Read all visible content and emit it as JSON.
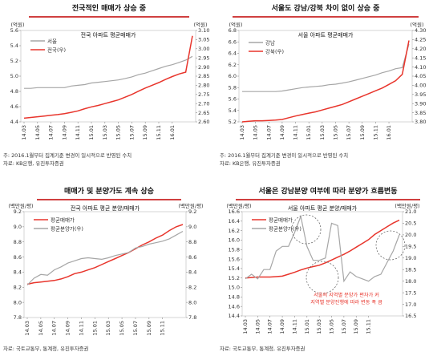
{
  "colors": {
    "red": "#e8352c",
    "gray": "#a6a6a6",
    "title_bar": "#c00000",
    "axis": "#888888",
    "text": "#333333"
  },
  "notes": {
    "top_left_1": "주: 2016.1월부터 집계기준 변경이 일시적으로 반영된 수치",
    "top_left_2": "자료: KB은행, 유진투자증권",
    "top_right_1": "주: 2016.1월부터 집계기준 변경이 일시적으로 반영된 수치",
    "top_right_2": "자료: KB은행, 유진투자증권",
    "bottom_left": "자료: 국토교통부, 통계청, 유진투자증권",
    "bottom_right": "자료: 국토교통부, 통계청, 유진투자증권"
  },
  "chart_data": [
    {
      "type": "line",
      "panel_title": "전국적인 매매가 상승 중",
      "title": "전국 아파트 평균매매가",
      "ylabel_left": "(억원)",
      "ylabel_right": "(억원)",
      "x_ticks": [
        "14.03",
        "14.05",
        "14.07",
        "14.09",
        "14.11",
        "15.01",
        "15.03",
        "15.05",
        "15.07",
        "15.09",
        "15.11",
        "16.01"
      ],
      "ylim_left": [
        4.4,
        5.6
      ],
      "ylim_right": [
        2.6,
        3.1
      ],
      "yticks_left": [
        4.4,
        4.6,
        4.8,
        5.0,
        5.2,
        5.4,
        5.6
      ],
      "yticks_right": [
        2.6,
        2.65,
        2.7,
        2.75,
        2.8,
        2.85,
        2.9,
        2.95,
        3.0,
        3.05,
        3.1
      ],
      "ytick_labels_left": [
        "4.4",
        "4.6",
        "4.8",
        "5.0",
        "5.2",
        "5.4",
        "5.6"
      ],
      "ytick_labels_right": [
        "2.60",
        "2.65",
        "2.70",
        "2.75",
        "2.80",
        "2.85",
        "2.90",
        "2.95",
        "3.00",
        "3.05",
        "3.10"
      ],
      "legend": "top-left",
      "series": [
        {
          "name": "서울",
          "axis": "left",
          "color": "gray",
          "values": [
            4.84,
            4.84,
            4.85,
            4.85,
            4.85,
            4.85,
            4.85,
            4.87,
            4.88,
            4.89,
            4.91,
            4.92,
            4.93,
            4.94,
            4.95,
            4.97,
            4.99,
            5.02,
            5.04,
            5.07,
            5.1,
            5.13,
            5.15,
            5.18,
            5.21,
            5.26
          ]
        },
        {
          "name": "전국(우)",
          "axis": "right",
          "color": "red",
          "values": [
            2.62,
            2.624,
            2.628,
            2.632,
            2.636,
            2.64,
            2.645,
            2.652,
            2.66,
            2.672,
            2.682,
            2.69,
            2.7,
            2.71,
            2.72,
            2.735,
            2.75,
            2.768,
            2.785,
            2.8,
            2.815,
            2.832,
            2.848,
            2.862,
            2.872,
            3.07
          ]
        }
      ]
    },
    {
      "type": "line",
      "panel_title": "서울도 강남/강북 차이 없이 상승 중",
      "title": "서울 아파트 평균매매가",
      "ylabel_left": "(억원)",
      "ylabel_right": "(억원)",
      "x_ticks": [
        "14.03",
        "14.05",
        "14.07",
        "14.09",
        "14.11",
        "15.01",
        "15.03",
        "15.05",
        "15.07",
        "15.09",
        "15.11",
        "16.01"
      ],
      "ylim_left": [
        5.2,
        6.8
      ],
      "ylim_right": [
        3.8,
        4.3
      ],
      "yticks_left": [
        5.2,
        5.4,
        5.6,
        5.8,
        6.0,
        6.2,
        6.4,
        6.6,
        6.8
      ],
      "yticks_right": [
        3.8,
        3.85,
        3.9,
        3.95,
        4.0,
        4.05,
        4.1,
        4.15,
        4.2,
        4.25,
        4.3
      ],
      "ytick_labels_left": [
        "5.2",
        "5.4",
        "5.6",
        "5.8",
        "6.0",
        "6.2",
        "6.4",
        "6.6",
        "6.8"
      ],
      "ytick_labels_right": [
        "3.80",
        "3.85",
        "3.90",
        "3.95",
        "4.00",
        "4.05",
        "4.10",
        "4.15",
        "4.20",
        "4.25",
        "4.30"
      ],
      "legend": "top-left",
      "series": [
        {
          "name": "강남",
          "axis": "left",
          "color": "gray",
          "values": [
            5.73,
            5.73,
            5.73,
            5.73,
            5.73,
            5.73,
            5.74,
            5.76,
            5.78,
            5.8,
            5.81,
            5.82,
            5.83,
            5.85,
            5.86,
            5.88,
            5.9,
            5.93,
            5.96,
            5.99,
            6.02,
            6.06,
            6.09,
            6.13,
            6.15,
            6.56
          ]
        },
        {
          "name": "강북(우)",
          "axis": "right",
          "color": "red",
          "values": [
            3.8,
            3.803,
            3.806,
            3.806,
            3.808,
            3.81,
            3.813,
            3.823,
            3.832,
            3.84,
            3.848,
            3.855,
            3.865,
            3.875,
            3.885,
            3.895,
            3.91,
            3.925,
            3.94,
            3.955,
            3.97,
            3.985,
            4.005,
            4.025,
            4.06,
            4.245
          ]
        }
      ]
    },
    {
      "type": "line",
      "panel_title": "매매가 및 분양가도 계속 상승",
      "title": "전국 아파트 평균 분양/매매가",
      "ylabel_left": "(백만원/평)",
      "ylabel_right": "(백만원/평)",
      "x_ticks": [
        "14.03",
        "14.05",
        "14.07",
        "14.09",
        "14.11",
        "15.01",
        "15.03",
        "15.05",
        "15.07",
        "15.09",
        "15.11"
      ],
      "ylim_left": [
        7.8,
        9.2
      ],
      "ylim_right": [
        7.8,
        9.2
      ],
      "yticks_left": [
        7.8,
        8.0,
        8.2,
        8.4,
        8.6,
        8.8,
        9.0,
        9.2
      ],
      "yticks_right": [
        7.8,
        8.0,
        8.2,
        8.4,
        8.6,
        8.8,
        9.0,
        9.2
      ],
      "ytick_labels_left": [
        "7.8",
        "8.0",
        "8.2",
        "8.4",
        "8.6",
        "8.8",
        "9.0",
        "9.2"
      ],
      "ytick_labels_right": [
        "7.8",
        "8.0",
        "8.2",
        "8.4",
        "8.6",
        "8.8",
        "9.0",
        "9.2"
      ],
      "legend": "top-left",
      "series": [
        {
          "name": "평균매매가",
          "axis": "left",
          "color": "red",
          "values": [
            8.24,
            8.26,
            8.27,
            8.28,
            8.29,
            8.31,
            8.34,
            8.38,
            8.4,
            8.43,
            8.46,
            8.5,
            8.54,
            8.58,
            8.62,
            8.66,
            8.71,
            8.76,
            8.8,
            8.85,
            8.89,
            8.95,
            9.0,
            9.03
          ]
        },
        {
          "name": "평균분양가(우)",
          "axis": "right",
          "color": "gray",
          "values": [
            8.23,
            8.32,
            8.37,
            8.36,
            8.43,
            8.47,
            8.52,
            8.55,
            8.58,
            8.59,
            8.58,
            8.57,
            8.59,
            8.62,
            8.64,
            8.66,
            8.72,
            8.74,
            8.77,
            8.79,
            8.81,
            8.84,
            8.89,
            8.94
          ]
        }
      ]
    },
    {
      "type": "line",
      "panel_title": "서울은 강남분양 여부에 따라 분양가 흐름변동",
      "title": "서울 아파트 평균 분양/매매가",
      "ylabel_left": "(백만원/평)",
      "ylabel_right": "(백만원/평)",
      "x_ticks": [
        "14.03",
        "14.05",
        "14.07",
        "14.09",
        "14.11",
        "15.01",
        "15.03",
        "15.05",
        "15.07",
        "15.09",
        "15.11"
      ],
      "ylim_left": [
        14.4,
        16.6
      ],
      "ylim_right": [
        16.5,
        21.0
      ],
      "yticks_left": [
        14.4,
        14.6,
        14.8,
        15.0,
        15.2,
        15.4,
        15.6,
        15.8,
        16.0,
        16.2,
        16.4,
        16.6
      ],
      "yticks_right": [
        16.5,
        17.0,
        17.5,
        18.0,
        18.5,
        19.0,
        19.5,
        20.0,
        20.5,
        21.0
      ],
      "ytick_labels_left": [
        "14.4",
        "14.6",
        "14.8",
        "15.0",
        "15.2",
        "15.4",
        "15.6",
        "15.8",
        "16.0",
        "16.2",
        "16.4",
        "16.6"
      ],
      "ytick_labels_right": [
        "16.5",
        "17.0",
        "17.5",
        "18.0",
        "18.5",
        "19.0",
        "19.5",
        "20.0",
        "20.5",
        "21.0"
      ],
      "legend": "top-left",
      "annotation": [
        "서울의 지역별 분양가 편차가 커",
        "지역별 분양진행에 따라 변동 폭 큼"
      ],
      "series": [
        {
          "name": "평균매매가",
          "axis": "left",
          "color": "red",
          "values": [
            15.2,
            15.21,
            15.22,
            15.22,
            15.22,
            15.23,
            15.24,
            15.28,
            15.32,
            15.37,
            15.41,
            15.44,
            15.47,
            15.52,
            15.58,
            15.64,
            15.7,
            15.77,
            15.85,
            15.93,
            16.01,
            16.12,
            16.2,
            16.28,
            16.36,
            16.42
          ]
        },
        {
          "name": "평균분양가(우)",
          "axis": "right",
          "color": "gray",
          "values": [
            18.1,
            18.3,
            18.1,
            18.5,
            18.5,
            19.3,
            19.5,
            19.5,
            20.1,
            20.8,
            19.5,
            18.9,
            18.9,
            19.0,
            20.5,
            20.4,
            18.0,
            18.4,
            18.2,
            18.1,
            18.0,
            18.2,
            18.3,
            18.8,
            19.3,
            20.0
          ]
        }
      ]
    }
  ]
}
